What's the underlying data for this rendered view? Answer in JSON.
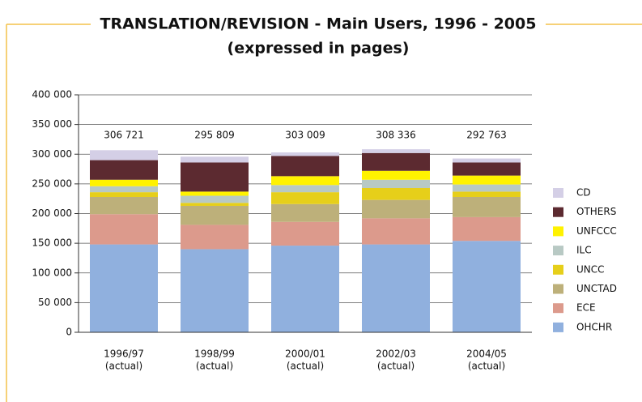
{
  "chart_data": {
    "type": "stacked_bar",
    "title": "TRANSLATION/REVISION - Main Users, 1996 - 2005",
    "subtitle": "(expressed in pages)",
    "categories": [
      "1996/97",
      "1998/99",
      "2000/01",
      "2002/03",
      "2004/05"
    ],
    "category_notes": [
      "(actual)",
      "(actual)",
      "(actual)",
      "(actual)",
      "(actual)"
    ],
    "series": [
      {
        "name": "OHCHR",
        "color": "#90b0de",
        "values": [
          148000,
          140000,
          146000,
          148000,
          154000
        ]
      },
      {
        "name": "ECE",
        "color": "#dc9a8c",
        "values": [
          51000,
          41000,
          40000,
          44000,
          40000
        ]
      },
      {
        "name": "UNCTAD",
        "color": "#bdb07a",
        "values": [
          29000,
          32000,
          30000,
          31000,
          34000
        ]
      },
      {
        "name": "UNCC",
        "color": "#e6cf1a",
        "values": [
          8000,
          5000,
          20000,
          20000,
          9000
        ]
      },
      {
        "name": "ILC",
        "color": "#b8c9c4",
        "values": [
          10000,
          12000,
          12000,
          14000,
          12000
        ]
      },
      {
        "name": "UNFCCC",
        "color": "#fff200",
        "values": [
          11000,
          7000,
          15000,
          15000,
          15000
        ]
      },
      {
        "name": "OTHERS",
        "color": "#5c2a30",
        "values": [
          33000,
          49000,
          34000,
          30000,
          22000
        ]
      },
      {
        "name": "CD",
        "color": "#d4cfe6",
        "values": [
          16721,
          9809,
          6009,
          6336,
          6763
        ]
      }
    ],
    "totals": [
      306721,
      295809,
      303009,
      308336,
      292763
    ],
    "total_labels": [
      "306 721",
      "295 809",
      "303 009",
      "308 336",
      "292 763"
    ],
    "ylim": [
      0,
      400000
    ],
    "yticks": [
      0,
      {
        "value": 50000,
        "label": "50 000"
      },
      {
        "value": 100000,
        "label": "100 000"
      },
      {
        "value": 150000,
        "label": "150 000"
      },
      {
        "value": 200000,
        "label": "200 000"
      },
      {
        "value": 250000,
        "label": "250 000"
      },
      {
        "value": 300000,
        "label": "300 000"
      },
      {
        "value": 350000,
        "label": "350 000"
      },
      {
        "value": 400000,
        "label": "400 000"
      }
    ],
    "grid": true
  }
}
